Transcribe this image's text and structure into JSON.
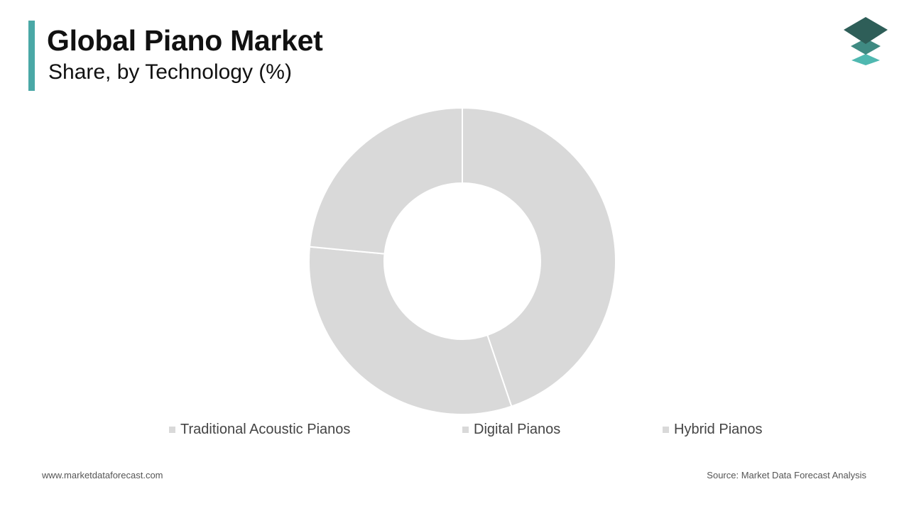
{
  "header": {
    "title": "Global Piano Market",
    "subtitle": "Share, by Technology (%)"
  },
  "logo": {
    "icon": "stacked-layers-icon",
    "colors": [
      "#2e5e58",
      "#3f8a82",
      "#4fb8b0"
    ]
  },
  "colors": {
    "accent": "#4aa8a6",
    "slice": "#d9d9d9",
    "legend_swatch": "#d9d9d9"
  },
  "chart_data": {
    "type": "pie",
    "style": "donut",
    "categories": [
      "Traditional Acoustic Pianos",
      "Digital Pianos",
      "Hybrid Pianos"
    ],
    "values": [
      44.8,
      31.7,
      23.5
    ],
    "legend_position": "bottom"
  },
  "footer": {
    "website": "www.marketdataforecast.com",
    "source": "Source: Market Data Forecast Analysis"
  }
}
